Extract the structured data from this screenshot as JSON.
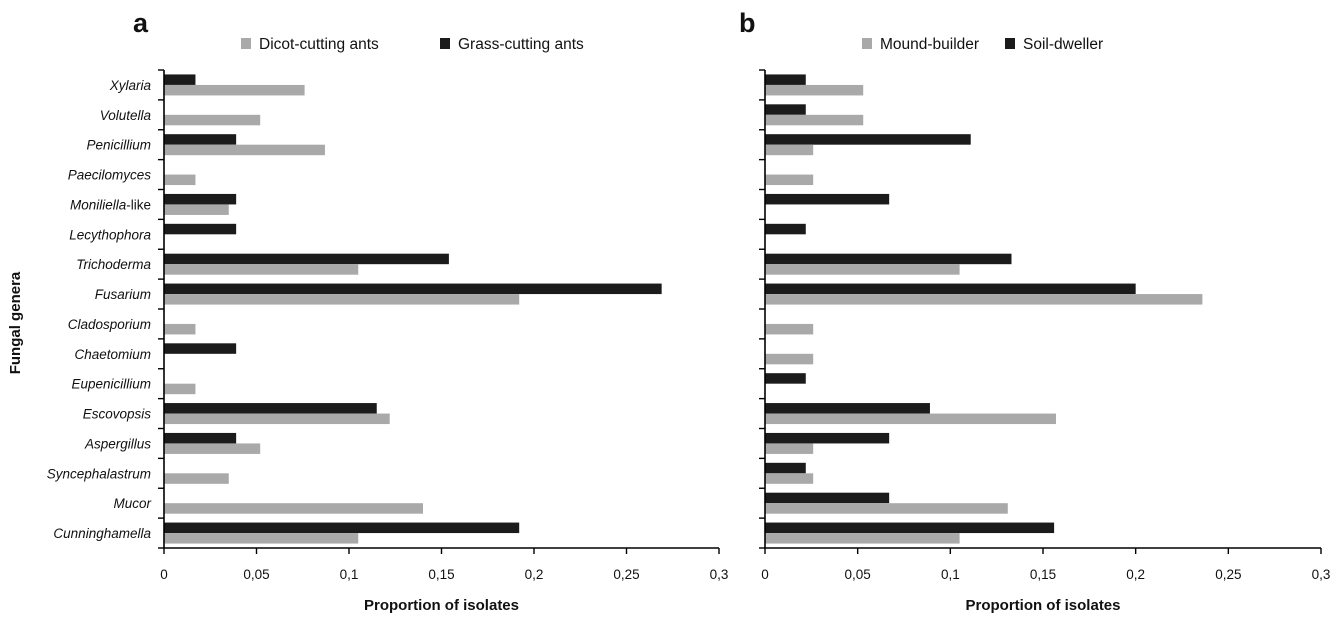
{
  "chart_data": [
    {
      "type": "bar",
      "orientation": "horizontal",
      "panel_label": "a",
      "categories": [
        {
          "name": "Xylaria",
          "suffix": ""
        },
        {
          "name": "Volutella",
          "suffix": ""
        },
        {
          "name": "Penicillium",
          "suffix": ""
        },
        {
          "name": "Paecilomyces",
          "suffix": ""
        },
        {
          "name": "Moniliella",
          "suffix": "-like"
        },
        {
          "name": "Lecythophora",
          "suffix": ""
        },
        {
          "name": "Trichoderma",
          "suffix": ""
        },
        {
          "name": "Fusarium",
          "suffix": ""
        },
        {
          "name": "Cladosporium",
          "suffix": ""
        },
        {
          "name": "Chaetomium",
          "suffix": ""
        },
        {
          "name": "Eupenicillium",
          "suffix": ""
        },
        {
          "name": "Escovopsis",
          "suffix": ""
        },
        {
          "name": "Aspergillus",
          "suffix": ""
        },
        {
          "name": "Syncephalastrum",
          "suffix": ""
        },
        {
          "name": "Mucor",
          "suffix": ""
        },
        {
          "name": "Cunninghamella",
          "suffix": ""
        }
      ],
      "series": [
        {
          "name": "Dicot-cutting ants",
          "color": "#a9a9a9",
          "values": [
            0.076,
            0.052,
            0.087,
            0.017,
            0.035,
            0,
            0.105,
            0.192,
            0.017,
            0,
            0.017,
            0.122,
            0.052,
            0.035,
            0.14,
            0.105
          ]
        },
        {
          "name": "Grass-cutting ants",
          "color": "#1b1b1b",
          "values": [
            0.017,
            0,
            0.039,
            0,
            0.039,
            0.039,
            0.154,
            0.269,
            0,
            0.039,
            0,
            0.115,
            0.039,
            0,
            0,
            0.192
          ]
        }
      ],
      "xlabel": "Proportion of isolates",
      "ylabel": "Fungal genera",
      "xlim": [
        0,
        0.3
      ],
      "xticks": [
        "0",
        "0,05",
        "0,1",
        "0,15",
        "0,2",
        "0,25",
        "0,3"
      ],
      "legend_position": "top",
      "grid": false
    },
    {
      "type": "bar",
      "orientation": "horizontal",
      "panel_label": "b",
      "categories": [
        {
          "name": "Xylaria",
          "suffix": ""
        },
        {
          "name": "Volutella",
          "suffix": ""
        },
        {
          "name": "Penicillium",
          "suffix": ""
        },
        {
          "name": "Paecilomyces",
          "suffix": ""
        },
        {
          "name": "Moniliella",
          "suffix": "-like"
        },
        {
          "name": "Lecythophora",
          "suffix": ""
        },
        {
          "name": "Trichoderma",
          "suffix": ""
        },
        {
          "name": "Fusarium",
          "suffix": ""
        },
        {
          "name": "Cladosporium",
          "suffix": ""
        },
        {
          "name": "Chaetomium",
          "suffix": ""
        },
        {
          "name": "Eupenicillium",
          "suffix": ""
        },
        {
          "name": "Escovopsis",
          "suffix": ""
        },
        {
          "name": "Aspergillus",
          "suffix": ""
        },
        {
          "name": "Syncephalastrum",
          "suffix": ""
        },
        {
          "name": "Mucor",
          "suffix": ""
        },
        {
          "name": "Cunninghamella",
          "suffix": ""
        }
      ],
      "show_category_labels": false,
      "series": [
        {
          "name": "Mound-builder",
          "color": "#a9a9a9",
          "values": [
            0.053,
            0.053,
            0.026,
            0.026,
            0,
            0,
            0.105,
            0.236,
            0.026,
            0.026,
            0,
            0.157,
            0.026,
            0.026,
            0.131,
            0.105
          ]
        },
        {
          "name": "Soil-dweller",
          "color": "#1b1b1b",
          "values": [
            0.022,
            0.022,
            0.111,
            0,
            0.067,
            0.022,
            0.133,
            0.2,
            0,
            0,
            0.022,
            0.089,
            0.067,
            0.022,
            0.067,
            0.156
          ]
        }
      ],
      "xlabel": "Proportion of isolates",
      "ylabel": "",
      "xlim": [
        0,
        0.3
      ],
      "xticks": [
        "0",
        "0,05",
        "0,1",
        "0,15",
        "0,2",
        "0,25",
        "0,3"
      ],
      "legend_position": "top",
      "grid": false
    }
  ]
}
